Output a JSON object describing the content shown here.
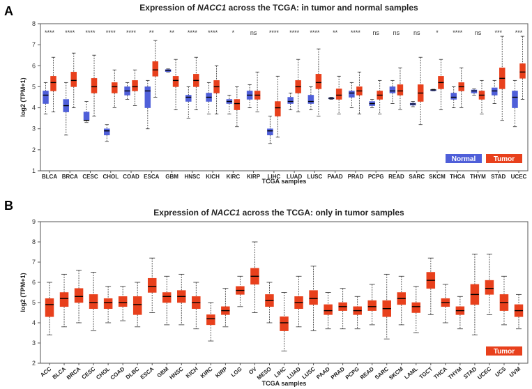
{
  "figure": {
    "panel_a_letter": "A",
    "panel_b_letter": "B"
  },
  "colors": {
    "normal": "#4f5fd9",
    "tumor": "#e8401c",
    "median": "#000000"
  },
  "chart_data": [
    {
      "type": "box",
      "title_parts": [
        "Expression of ",
        "NACC1",
        " across the TCGA: in tumor and normal samples"
      ],
      "xlabel": "TCGA samples",
      "ylabel": "log2 (TPM+1)",
      "ylim": [
        1,
        8
      ],
      "yticks": [
        1,
        2,
        3,
        4,
        5,
        6,
        7,
        8
      ],
      "legend": {
        "placement": "bottom-right",
        "entries": [
          "Normal",
          "Tumor"
        ]
      },
      "categories": [
        "BLCA",
        "BRCA",
        "CESC",
        "CHOL",
        "COAD",
        "ESCA",
        "GBM",
        "HNSC",
        "KICH",
        "KIRC",
        "KIRP",
        "LIHC",
        "LUAD",
        "LUSC",
        "PAAD",
        "PRAD",
        "PCPG",
        "READ",
        "SARC",
        "SKCM",
        "THCA",
        "THYM",
        "STAD",
        "UCEC"
      ],
      "significance": [
        "****",
        "****",
        "****",
        "****",
        "****",
        "**",
        "**",
        "****",
        "****",
        "*",
        "ns",
        "****",
        "****",
        "****",
        "**",
        "****",
        "ns",
        "ns",
        "ns",
        "*",
        "****",
        "ns",
        "***",
        "***"
      ],
      "normal": [
        [
          3.7,
          4.2,
          4.6,
          4.8,
          5.2
        ],
        [
          2.7,
          3.8,
          4.1,
          4.4,
          5.2
        ],
        [
          3.3,
          3.4,
          3.4,
          3.8,
          4.3
        ],
        [
          2.4,
          2.7,
          2.9,
          3.0,
          3.2
        ],
        [
          4.4,
          4.6,
          4.8,
          5.0,
          5.2
        ],
        [
          3.0,
          4.0,
          4.8,
          5.0,
          5.3
        ],
        [
          5.7,
          5.72,
          5.78,
          5.82,
          5.85
        ],
        [
          3.5,
          4.3,
          4.5,
          4.6,
          5.0
        ],
        [
          3.7,
          4.3,
          4.5,
          4.7,
          5.2
        ],
        [
          3.7,
          4.2,
          4.3,
          4.4,
          4.6
        ],
        [
          4.0,
          4.4,
          4.6,
          4.8,
          5.1
        ],
        [
          2.3,
          2.7,
          2.9,
          3.0,
          3.6
        ],
        [
          3.9,
          4.2,
          4.3,
          4.5,
          4.7
        ],
        [
          3.9,
          4.2,
          4.3,
          4.6,
          5.0
        ],
        [
          4.4,
          4.42,
          4.45,
          4.48,
          4.5
        ],
        [
          4.0,
          4.5,
          4.7,
          4.8,
          5.2
        ],
        [
          4.0,
          4.1,
          4.2,
          4.3,
          4.4
        ],
        [
          4.2,
          4.7,
          4.8,
          5.0,
          5.3
        ],
        [
          4.05,
          4.12,
          4.18,
          4.22,
          4.3
        ],
        [
          4.8,
          4.82,
          4.85,
          4.86,
          4.88
        ],
        [
          4.0,
          4.4,
          4.5,
          4.7,
          5.0
        ],
        [
          4.6,
          4.7,
          4.8,
          4.85,
          4.9
        ],
        [
          4.2,
          4.6,
          4.8,
          4.95,
          5.3
        ],
        [
          3.1,
          4.0,
          4.5,
          4.8,
          5.3
        ]
      ],
      "tumor": [
        [
          3.8,
          4.8,
          5.2,
          5.5,
          6.4
        ],
        [
          4.0,
          5.0,
          5.3,
          5.7,
          6.6
        ],
        [
          3.6,
          4.7,
          5.0,
          5.4,
          6.5
        ],
        [
          4.0,
          4.7,
          5.0,
          5.2,
          5.8
        ],
        [
          4.1,
          4.8,
          5.0,
          5.3,
          5.8
        ],
        [
          4.5,
          5.5,
          5.8,
          6.2,
          7.2
        ],
        [
          3.9,
          5.0,
          5.3,
          5.5,
          6.3
        ],
        [
          3.9,
          5.0,
          5.3,
          5.6,
          6.4
        ],
        [
          3.7,
          4.7,
          5.0,
          5.3,
          6.0
        ],
        [
          3.1,
          3.9,
          4.2,
          4.4,
          5.0
        ],
        [
          3.8,
          4.4,
          4.6,
          4.8,
          5.7
        ],
        [
          2.6,
          3.6,
          4.0,
          4.3,
          5.5
        ],
        [
          3.8,
          4.7,
          5.0,
          5.3,
          6.3
        ],
        [
          3.6,
          4.9,
          5.2,
          5.6,
          6.8
        ],
        [
          3.7,
          4.4,
          4.6,
          4.9,
          5.5
        ],
        [
          3.7,
          4.6,
          4.8,
          5.0,
          5.7
        ],
        [
          3.7,
          4.4,
          4.6,
          4.8,
          5.3
        ],
        [
          3.9,
          4.6,
          4.8,
          5.1,
          5.9
        ],
        [
          3.2,
          4.3,
          4.7,
          5.1,
          6.4
        ],
        [
          3.9,
          4.9,
          5.2,
          5.5,
          6.3
        ],
        [
          4.0,
          4.8,
          5.0,
          5.2,
          5.9
        ],
        [
          3.7,
          4.4,
          4.6,
          4.8,
          5.3
        ],
        [
          3.4,
          4.9,
          5.4,
          5.9,
          7.4
        ],
        [
          4.4,
          5.4,
          5.7,
          6.1,
          7.4
        ]
      ]
    },
    {
      "type": "box",
      "title_parts": [
        "Expression of ",
        "NACC1",
        " across the TCGA: only in tumor samples"
      ],
      "xlabel": "TCGA samples",
      "ylabel": "log2 (TPM+1)",
      "ylim": [
        2,
        9
      ],
      "yticks": [
        2,
        3,
        4,
        5,
        6,
        7,
        8,
        9
      ],
      "legend": {
        "placement": "bottom-right",
        "entries": [
          "Tumor"
        ]
      },
      "categories": [
        "ACC",
        "BLCA",
        "BRCA",
        "CESC",
        "CHOL",
        "COAD",
        "DLBC",
        "ESCA",
        "GBM",
        "HNSC",
        "KICH",
        "KIRC",
        "KIRP",
        "LGG",
        "OV",
        "MESO",
        "LIHC",
        "LUAD",
        "LUSC",
        "PAAD",
        "PRAD",
        "PCPG",
        "READ",
        "SARC",
        "SKCM",
        "LAML",
        "TGCT",
        "THCA",
        "THYM",
        "STAD",
        "UCEC",
        "UCS",
        "UVM"
      ],
      "tumor": [
        [
          3.4,
          4.3,
          4.9,
          5.2,
          6.0
        ],
        [
          3.8,
          4.8,
          5.2,
          5.5,
          6.4
        ],
        [
          4.0,
          5.0,
          5.3,
          5.7,
          6.6
        ],
        [
          3.6,
          4.7,
          5.0,
          5.4,
          6.5
        ],
        [
          4.0,
          4.7,
          5.0,
          5.2,
          5.8
        ],
        [
          4.1,
          4.8,
          5.0,
          5.3,
          5.8
        ],
        [
          3.8,
          4.4,
          4.9,
          5.3,
          6.0
        ],
        [
          4.5,
          5.5,
          5.8,
          6.2,
          7.2
        ],
        [
          3.9,
          5.0,
          5.3,
          5.5,
          6.3
        ],
        [
          3.9,
          5.0,
          5.3,
          5.6,
          6.4
        ],
        [
          3.7,
          4.7,
          5.0,
          5.3,
          6.0
        ],
        [
          3.1,
          3.9,
          4.2,
          4.4,
          5.0
        ],
        [
          3.8,
          4.4,
          4.6,
          4.8,
          5.7
        ],
        [
          4.8,
          5.4,
          5.6,
          5.8,
          6.3
        ],
        [
          4.5,
          5.9,
          6.3,
          6.7,
          8.0
        ],
        [
          4.0,
          4.8,
          5.1,
          5.4,
          6.0
        ],
        [
          2.6,
          3.6,
          4.0,
          4.3,
          5.5
        ],
        [
          3.8,
          4.7,
          5.0,
          5.3,
          6.3
        ],
        [
          3.6,
          4.9,
          5.2,
          5.6,
          6.8
        ],
        [
          3.7,
          4.4,
          4.6,
          4.9,
          5.5
        ],
        [
          3.7,
          4.6,
          4.8,
          5.0,
          5.7
        ],
        [
          3.7,
          4.4,
          4.6,
          4.8,
          5.3
        ],
        [
          3.9,
          4.6,
          4.8,
          5.1,
          5.9
        ],
        [
          3.2,
          4.3,
          4.7,
          5.1,
          6.4
        ],
        [
          3.9,
          4.9,
          5.2,
          5.5,
          6.3
        ],
        [
          3.5,
          4.5,
          4.8,
          5.0,
          5.8
        ],
        [
          4.4,
          5.7,
          6.1,
          6.5,
          7.2
        ],
        [
          4.0,
          4.8,
          5.0,
          5.2,
          5.9
        ],
        [
          3.7,
          4.4,
          4.6,
          4.8,
          5.3
        ],
        [
          3.4,
          4.9,
          5.4,
          5.9,
          7.4
        ],
        [
          4.4,
          5.4,
          5.7,
          6.1,
          7.4
        ],
        [
          3.9,
          4.6,
          5.0,
          5.4,
          6.3
        ],
        [
          3.7,
          4.3,
          4.6,
          4.9,
          5.4
        ]
      ]
    }
  ]
}
